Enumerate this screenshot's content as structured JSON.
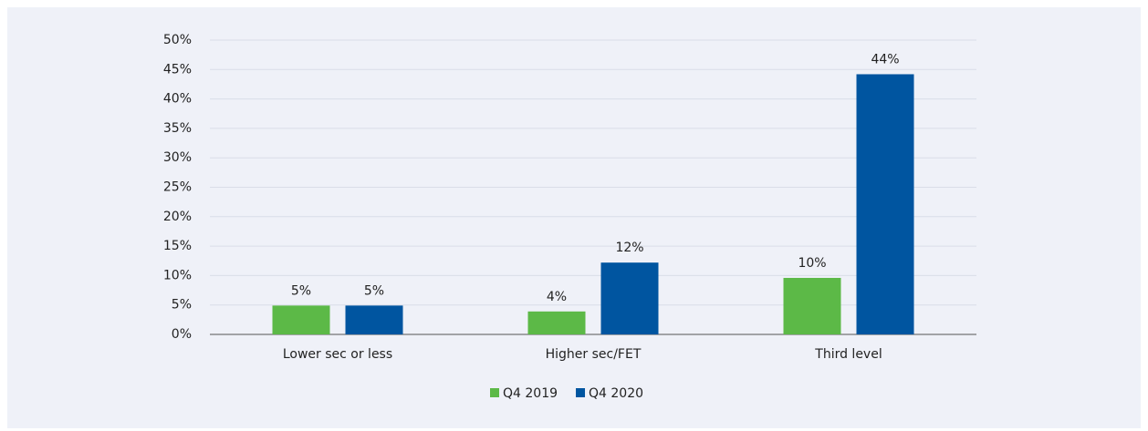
{
  "chart_data": {
    "type": "bar",
    "categories": [
      "Lower sec or less",
      "Higher sec/FET",
      "Third level"
    ],
    "series": [
      {
        "name": "Q4 2019",
        "color": "#5cb947",
        "values": [
          4.9,
          3.9,
          9.6
        ],
        "value_labels": [
          "5%",
          "4%",
          "10%"
        ]
      },
      {
        "name": "Q4 2020",
        "color": "#0055a0",
        "values": [
          4.9,
          12.2,
          44.2
        ],
        "value_labels": [
          "5%",
          "12%",
          "44%"
        ]
      }
    ],
    "ylim": [
      0,
      50
    ],
    "yticks": [
      {
        "value": 0,
        "label": "0%"
      },
      {
        "value": 5,
        "label": "5%"
      },
      {
        "value": 10,
        "label": "10%"
      },
      {
        "value": 15,
        "label": "15%"
      },
      {
        "value": 20,
        "label": "20%"
      },
      {
        "value": 25,
        "label": "25%"
      },
      {
        "value": 30,
        "label": "30%"
      },
      {
        "value": 35,
        "label": "35%"
      },
      {
        "value": 40,
        "label": "40%"
      },
      {
        "value": 45,
        "label": "45%"
      },
      {
        "value": 50,
        "label": "50%"
      }
    ],
    "grid": true,
    "legend": "bottom"
  }
}
